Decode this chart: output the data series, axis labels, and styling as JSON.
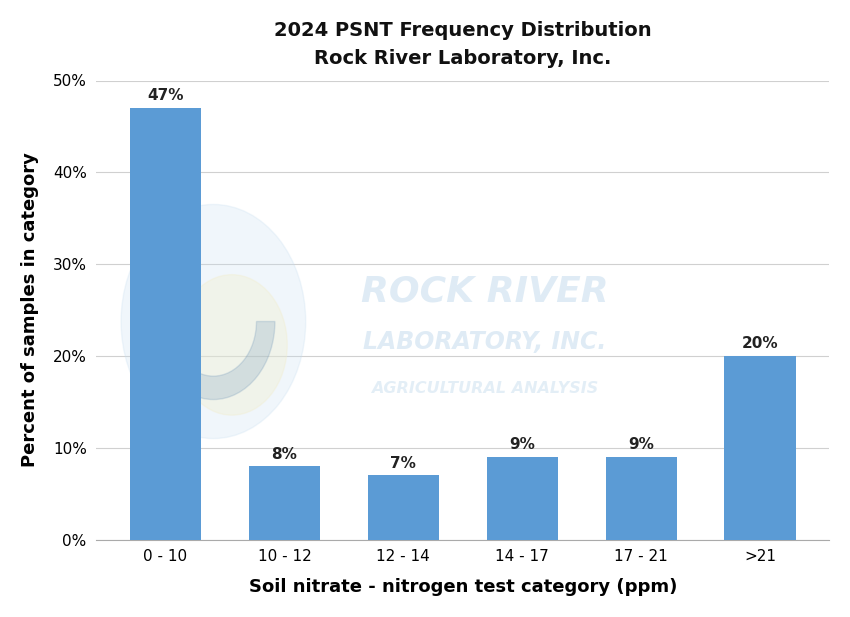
{
  "title_line1": "2024 PSNT Frequency Distribution",
  "title_line2": "Rock River Laboratory, Inc.",
  "categories": [
    "0 - 10",
    "10 - 12",
    "12 - 14",
    "14 - 17",
    "17 - 21",
    ">21"
  ],
  "values": [
    47,
    8,
    7,
    9,
    9,
    20
  ],
  "bar_color": "#5b9bd5",
  "xlabel": "Soil nitrate - nitrogen test category (ppm)",
  "ylabel": "Percent of samples in category",
  "ylim": [
    0,
    50
  ],
  "yticks": [
    0,
    10,
    20,
    30,
    40,
    50
  ],
  "ytick_labels": [
    "0%",
    "10%",
    "20%",
    "30%",
    "40%",
    "50%"
  ],
  "label_fontsize": 13,
  "title_fontsize": 14,
  "bar_label_fontsize": 11,
  "background_color": "#ffffff",
  "grid_color": "#d0d0d0",
  "watermark_color": "#b8d4ea",
  "watermark_alpha": 0.45,
  "watermark_text_line1": "ROCK RIVER",
  "watermark_text_line2": "LABORATORY, INC.",
  "watermark_text_line3": "AGRICULTURAL ANALYSIS",
  "logo_outer_color": "#c5ddf0",
  "logo_inner_color": "#f0eecc",
  "logo_alpha": 0.25
}
